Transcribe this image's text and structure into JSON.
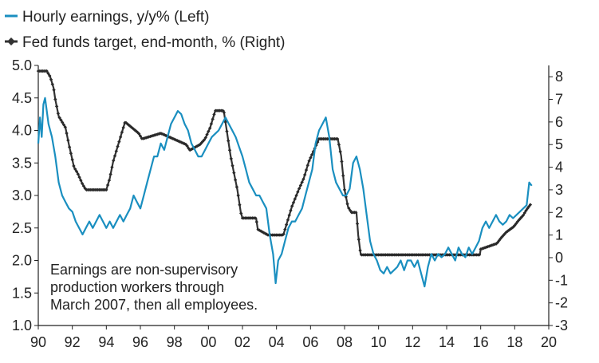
{
  "chart_data": {
    "type": "line",
    "title": "",
    "xlabel": "",
    "x_ticks": [
      "90",
      "92",
      "94",
      "96",
      "98",
      "00",
      "02",
      "04",
      "06",
      "08",
      "10",
      "12",
      "14",
      "16",
      "18",
      "20"
    ],
    "x_range": [
      1990,
      2020
    ],
    "y_left": {
      "range": [
        1.0,
        5.0
      ],
      "ticks": [
        "1.0",
        "1.5",
        "2.0",
        "2.5",
        "3.0",
        "3.5",
        "4.0",
        "4.5",
        "5.0"
      ]
    },
    "y_right": {
      "range": [
        -3,
        8.5
      ],
      "ticks": [
        "-3",
        "-2",
        "-1",
        "0",
        "1",
        "2",
        "3",
        "4",
        "5",
        "6",
        "7",
        "8"
      ]
    },
    "legend": {
      "placement": "top-left",
      "entries": [
        {
          "label": "Hourly earnings, y/y% (Left)",
          "color": "#1a8fc0",
          "marker": "none"
        },
        {
          "label": "Fed funds target, end-month, % (Right)",
          "color": "#333333",
          "marker": "diamond"
        }
      ]
    },
    "annotation": [
      "Earnings are non-supervisory",
      "production workers through",
      "March 2007, then all employees."
    ],
    "grid": false,
    "series": [
      {
        "name": "Hourly earnings, y/y% (Left)",
        "axis": "left",
        "color": "#1a8fc0",
        "points": [
          [
            1990.0,
            3.8
          ],
          [
            1990.1,
            4.2
          ],
          [
            1990.2,
            3.9
          ],
          [
            1990.3,
            4.4
          ],
          [
            1990.4,
            4.5
          ],
          [
            1990.6,
            4.1
          ],
          [
            1990.8,
            3.9
          ],
          [
            1991.0,
            3.6
          ],
          [
            1991.2,
            3.2
          ],
          [
            1991.4,
            3.0
          ],
          [
            1991.6,
            2.9
          ],
          [
            1991.8,
            2.8
          ],
          [
            1992.0,
            2.75
          ],
          [
            1992.2,
            2.6
          ],
          [
            1992.4,
            2.5
          ],
          [
            1992.6,
            2.4
          ],
          [
            1992.8,
            2.5
          ],
          [
            1993.0,
            2.6
          ],
          [
            1993.2,
            2.5
          ],
          [
            1993.4,
            2.6
          ],
          [
            1993.6,
            2.7
          ],
          [
            1993.8,
            2.6
          ],
          [
            1994.0,
            2.5
          ],
          [
            1994.2,
            2.6
          ],
          [
            1994.4,
            2.5
          ],
          [
            1994.6,
            2.6
          ],
          [
            1994.8,
            2.7
          ],
          [
            1995.0,
            2.6
          ],
          [
            1995.2,
            2.7
          ],
          [
            1995.4,
            2.8
          ],
          [
            1995.6,
            3.0
          ],
          [
            1995.8,
            2.9
          ],
          [
            1996.0,
            2.8
          ],
          [
            1996.2,
            3.0
          ],
          [
            1996.4,
            3.2
          ],
          [
            1996.6,
            3.4
          ],
          [
            1996.8,
            3.6
          ],
          [
            1997.0,
            3.6
          ],
          [
            1997.2,
            3.8
          ],
          [
            1997.4,
            3.7
          ],
          [
            1997.6,
            3.9
          ],
          [
            1997.8,
            4.1
          ],
          [
            1998.0,
            4.2
          ],
          [
            1998.2,
            4.3
          ],
          [
            1998.4,
            4.25
          ],
          [
            1998.6,
            4.1
          ],
          [
            1998.8,
            4.0
          ],
          [
            1999.0,
            3.8
          ],
          [
            1999.2,
            3.7
          ],
          [
            1999.4,
            3.6
          ],
          [
            1999.6,
            3.6
          ],
          [
            1999.8,
            3.7
          ],
          [
            2000.0,
            3.8
          ],
          [
            2000.2,
            3.9
          ],
          [
            2000.4,
            3.95
          ],
          [
            2000.6,
            4.0
          ],
          [
            2000.8,
            4.1
          ],
          [
            2001.0,
            4.2
          ],
          [
            2001.2,
            4.1
          ],
          [
            2001.4,
            4.0
          ],
          [
            2001.6,
            3.9
          ],
          [
            2001.8,
            3.75
          ],
          [
            2002.0,
            3.6
          ],
          [
            2002.2,
            3.4
          ],
          [
            2002.4,
            3.2
          ],
          [
            2002.6,
            3.1
          ],
          [
            2002.8,
            3.0
          ],
          [
            2003.0,
            3.0
          ],
          [
            2003.2,
            2.9
          ],
          [
            2003.4,
            2.8
          ],
          [
            2003.6,
            2.4
          ],
          [
            2003.8,
            2.1
          ],
          [
            2003.95,
            1.65
          ],
          [
            2004.1,
            2.0
          ],
          [
            2004.3,
            2.1
          ],
          [
            2004.5,
            2.3
          ],
          [
            2004.7,
            2.5
          ],
          [
            2004.9,
            2.6
          ],
          [
            2005.1,
            2.6
          ],
          [
            2005.3,
            2.7
          ],
          [
            2005.5,
            2.8
          ],
          [
            2005.7,
            3.0
          ],
          [
            2005.9,
            3.2
          ],
          [
            2006.1,
            3.4
          ],
          [
            2006.3,
            3.8
          ],
          [
            2006.5,
            4.0
          ],
          [
            2006.7,
            4.1
          ],
          [
            2006.9,
            4.2
          ],
          [
            2007.1,
            3.9
          ],
          [
            2007.3,
            3.4
          ],
          [
            2007.5,
            3.2
          ],
          [
            2007.7,
            3.1
          ],
          [
            2007.9,
            3.0
          ],
          [
            2008.1,
            3.0
          ],
          [
            2008.3,
            3.1
          ],
          [
            2008.5,
            3.5
          ],
          [
            2008.7,
            3.6
          ],
          [
            2008.9,
            3.4
          ],
          [
            2009.1,
            3.1
          ],
          [
            2009.3,
            2.7
          ],
          [
            2009.5,
            2.3
          ],
          [
            2009.7,
            2.1
          ],
          [
            2009.9,
            2.0
          ],
          [
            2010.1,
            1.85
          ],
          [
            2010.3,
            1.8
          ],
          [
            2010.5,
            1.9
          ],
          [
            2010.7,
            1.8
          ],
          [
            2010.9,
            1.85
          ],
          [
            2011.1,
            1.9
          ],
          [
            2011.3,
            2.0
          ],
          [
            2011.5,
            1.85
          ],
          [
            2011.7,
            2.0
          ],
          [
            2011.9,
            2.0
          ],
          [
            2012.1,
            1.9
          ],
          [
            2012.3,
            2.0
          ],
          [
            2012.5,
            1.8
          ],
          [
            2012.7,
            1.6
          ],
          [
            2012.9,
            1.9
          ],
          [
            2013.1,
            2.1
          ],
          [
            2013.3,
            2.0
          ],
          [
            2013.5,
            2.1
          ],
          [
            2013.7,
            2.05
          ],
          [
            2013.9,
            2.1
          ],
          [
            2014.1,
            2.2
          ],
          [
            2014.3,
            2.1
          ],
          [
            2014.5,
            2.0
          ],
          [
            2014.7,
            2.2
          ],
          [
            2014.9,
            2.1
          ],
          [
            2015.1,
            2.05
          ],
          [
            2015.3,
            2.2
          ],
          [
            2015.5,
            2.1
          ],
          [
            2015.7,
            2.2
          ],
          [
            2015.9,
            2.3
          ],
          [
            2016.1,
            2.5
          ],
          [
            2016.3,
            2.6
          ],
          [
            2016.5,
            2.5
          ],
          [
            2016.7,
            2.6
          ],
          [
            2016.9,
            2.7
          ],
          [
            2017.1,
            2.6
          ],
          [
            2017.3,
            2.55
          ],
          [
            2017.5,
            2.6
          ],
          [
            2017.7,
            2.7
          ],
          [
            2017.9,
            2.65
          ],
          [
            2018.1,
            2.7
          ],
          [
            2018.3,
            2.75
          ],
          [
            2018.5,
            2.8
          ],
          [
            2018.7,
            2.85
          ],
          [
            2018.85,
            3.2
          ],
          [
            2019.0,
            3.15
          ]
        ]
      },
      {
        "name": "Fed funds target, end-month, % (Right)",
        "axis": "right",
        "color": "#333333",
        "points": [
          [
            1990.0,
            8.25
          ],
          [
            1990.5,
            8.25
          ],
          [
            1990.7,
            8.0
          ],
          [
            1990.9,
            7.5
          ],
          [
            1991.0,
            7.0
          ],
          [
            1991.2,
            6.25
          ],
          [
            1991.4,
            6.0
          ],
          [
            1991.6,
            5.75
          ],
          [
            1991.8,
            5.0
          ],
          [
            1991.95,
            4.5
          ],
          [
            1992.1,
            4.0
          ],
          [
            1992.3,
            3.75
          ],
          [
            1992.6,
            3.25
          ],
          [
            1992.8,
            3.0
          ],
          [
            1994.0,
            3.0
          ],
          [
            1994.2,
            3.5
          ],
          [
            1994.4,
            4.25
          ],
          [
            1994.6,
            4.75
          ],
          [
            1994.9,
            5.5
          ],
          [
            1995.1,
            6.0
          ],
          [
            1995.5,
            5.75
          ],
          [
            1995.9,
            5.5
          ],
          [
            1996.1,
            5.25
          ],
          [
            1997.2,
            5.5
          ],
          [
            1998.7,
            5.0
          ],
          [
            1998.9,
            4.75
          ],
          [
            1999.5,
            5.0
          ],
          [
            1999.8,
            5.25
          ],
          [
            2000.1,
            5.75
          ],
          [
            2000.4,
            6.5
          ],
          [
            2000.9,
            6.5
          ],
          [
            2001.1,
            5.5
          ],
          [
            2001.3,
            4.5
          ],
          [
            2001.5,
            3.75
          ],
          [
            2001.7,
            3.0
          ],
          [
            2001.9,
            2.0
          ],
          [
            2002.0,
            1.75
          ],
          [
            2002.8,
            1.75
          ],
          [
            2002.9,
            1.25
          ],
          [
            2003.5,
            1.0
          ],
          [
            2004.4,
            1.0
          ],
          [
            2004.6,
            1.5
          ],
          [
            2004.9,
            2.25
          ],
          [
            2005.3,
            3.0
          ],
          [
            2005.6,
            3.5
          ],
          [
            2005.9,
            4.25
          ],
          [
            2006.2,
            4.75
          ],
          [
            2006.5,
            5.25
          ],
          [
            2007.6,
            5.25
          ],
          [
            2007.8,
            4.5
          ],
          [
            2008.0,
            3.0
          ],
          [
            2008.2,
            2.25
          ],
          [
            2008.4,
            2.0
          ],
          [
            2008.7,
            2.0
          ],
          [
            2008.8,
            1.0
          ],
          [
            2008.95,
            0.125
          ],
          [
            2015.95,
            0.125
          ],
          [
            2016.0,
            0.375
          ],
          [
            2016.95,
            0.625
          ],
          [
            2017.2,
            0.875
          ],
          [
            2017.5,
            1.125
          ],
          [
            2017.95,
            1.375
          ],
          [
            2018.2,
            1.625
          ],
          [
            2018.5,
            1.875
          ],
          [
            2018.7,
            2.125
          ],
          [
            2018.95,
            2.375
          ]
        ]
      }
    ]
  }
}
